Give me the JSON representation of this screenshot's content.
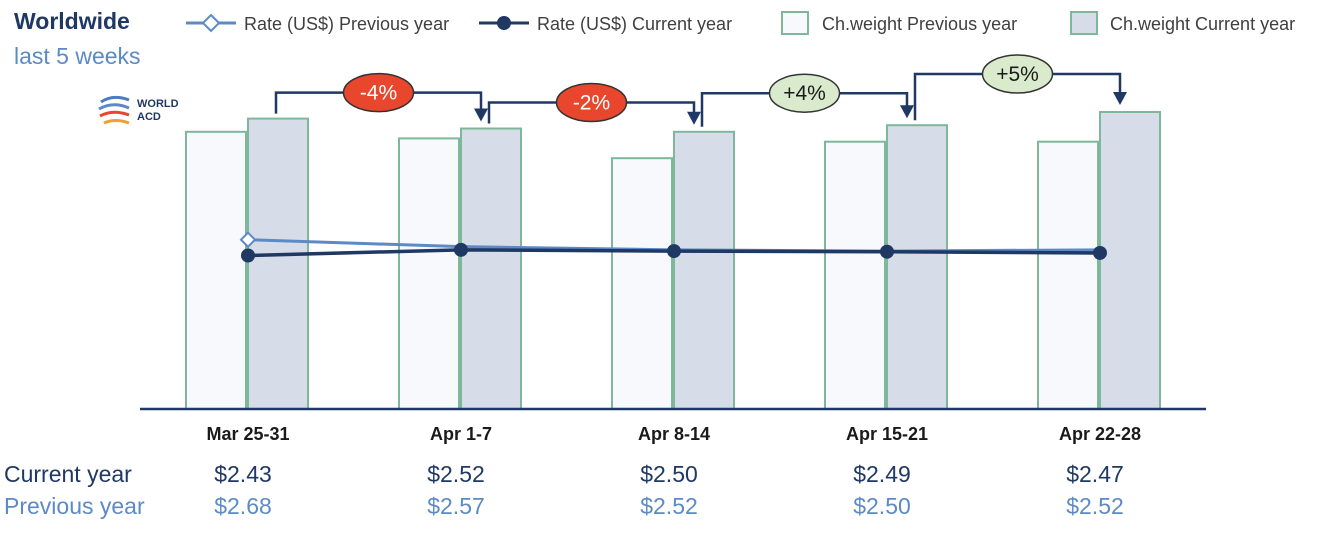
{
  "header": {
    "title": "Worldwide",
    "subtitle": "last 5 weeks"
  },
  "logo": {
    "line1": "WORLD",
    "line2": "ACD"
  },
  "legend": {
    "rate_prev": "Rate (US$) Previous year",
    "rate_cur": "Rate (US$) Current year",
    "weight_prev": "Ch.weight Previous year",
    "weight_cur": "Ch.weight Current year"
  },
  "row_labels": {
    "current": "Current year",
    "previous": "Previous year"
  },
  "colors": {
    "line_prev": "#5b8ac6",
    "line_cur": "#1f3864",
    "bar_border": "#7fb79a",
    "bar_prev_fill": "#f7f9fc",
    "bar_cur_fill": "#d6dce8",
    "axis": "#1f3864",
    "neg_badge": "#e8472e",
    "pos_badge": "#d9ebcc"
  },
  "chart_data": {
    "type": "bar",
    "title": "Worldwide",
    "subtitle": "last 5 weeks",
    "categories": [
      "Mar 25-31",
      "Apr 1-7",
      "Apr 8-14",
      "Apr 15-21",
      "Apr 22-28"
    ],
    "series": [
      {
        "name": "Ch.weight Previous year",
        "kind": "bar",
        "values": [
          84,
          82,
          76,
          81,
          81
        ]
      },
      {
        "name": "Ch.weight Current year",
        "kind": "bar",
        "values": [
          88,
          85,
          84,
          86,
          90
        ]
      },
      {
        "name": "Rate (US$) Previous year",
        "kind": "line",
        "values": [
          2.68,
          2.57,
          2.52,
          2.5,
          2.52
        ],
        "labels": [
          "$2.68",
          "$2.57",
          "$2.52",
          "$2.50",
          "$2.52"
        ]
      },
      {
        "name": "Rate (US$) Current year",
        "kind": "line",
        "values": [
          2.43,
          2.52,
          2.5,
          2.49,
          2.47
        ],
        "labels": [
          "$2.43",
          "$2.52",
          "$2.50",
          "$2.49",
          "$2.47"
        ]
      }
    ],
    "weight_axis_range": [
      0,
      100
    ],
    "rate_axis_range": [
      0,
      6
    ],
    "changes": [
      {
        "from": 0,
        "to": 1,
        "label": "-4%",
        "sign": "negative"
      },
      {
        "from": 1,
        "to": 2,
        "label": "-2%",
        "sign": "negative"
      },
      {
        "from": 2,
        "to": 3,
        "label": "+4%",
        "sign": "positive"
      },
      {
        "from": 3,
        "to": 4,
        "label": "+5%",
        "sign": "positive"
      }
    ],
    "legend_position": "top",
    "grid": false
  }
}
